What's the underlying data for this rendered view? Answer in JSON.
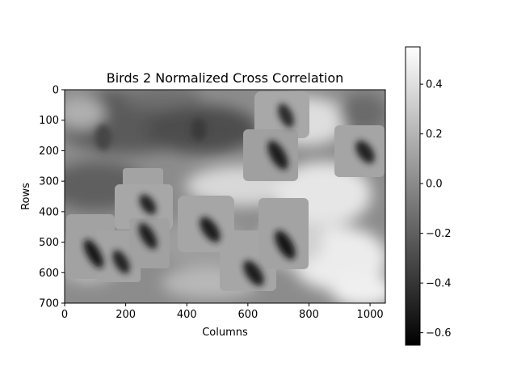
{
  "chart_data": {
    "type": "heatmap",
    "title": "Birds 2 Normalized Cross Correlation",
    "xlabel": "Columns",
    "ylabel": "Rows",
    "xlim": [
      0,
      1050
    ],
    "ylim": [
      700,
      0
    ],
    "x_ticks": [
      0,
      200,
      400,
      600,
      800,
      1000
    ],
    "y_ticks": [
      0,
      100,
      200,
      300,
      400,
      500,
      600,
      700
    ],
    "colormap": "gray",
    "colorbar": {
      "range": [
        -0.65,
        0.55
      ],
      "ticks": [
        0.4,
        0.2,
        0.0,
        -0.2,
        -0.4,
        -0.6
      ],
      "tick_labels": [
        "0.4",
        "0.2",
        "0.0",
        "−0.2",
        "−0.4",
        "−0.6"
      ]
    },
    "grid": false
  }
}
